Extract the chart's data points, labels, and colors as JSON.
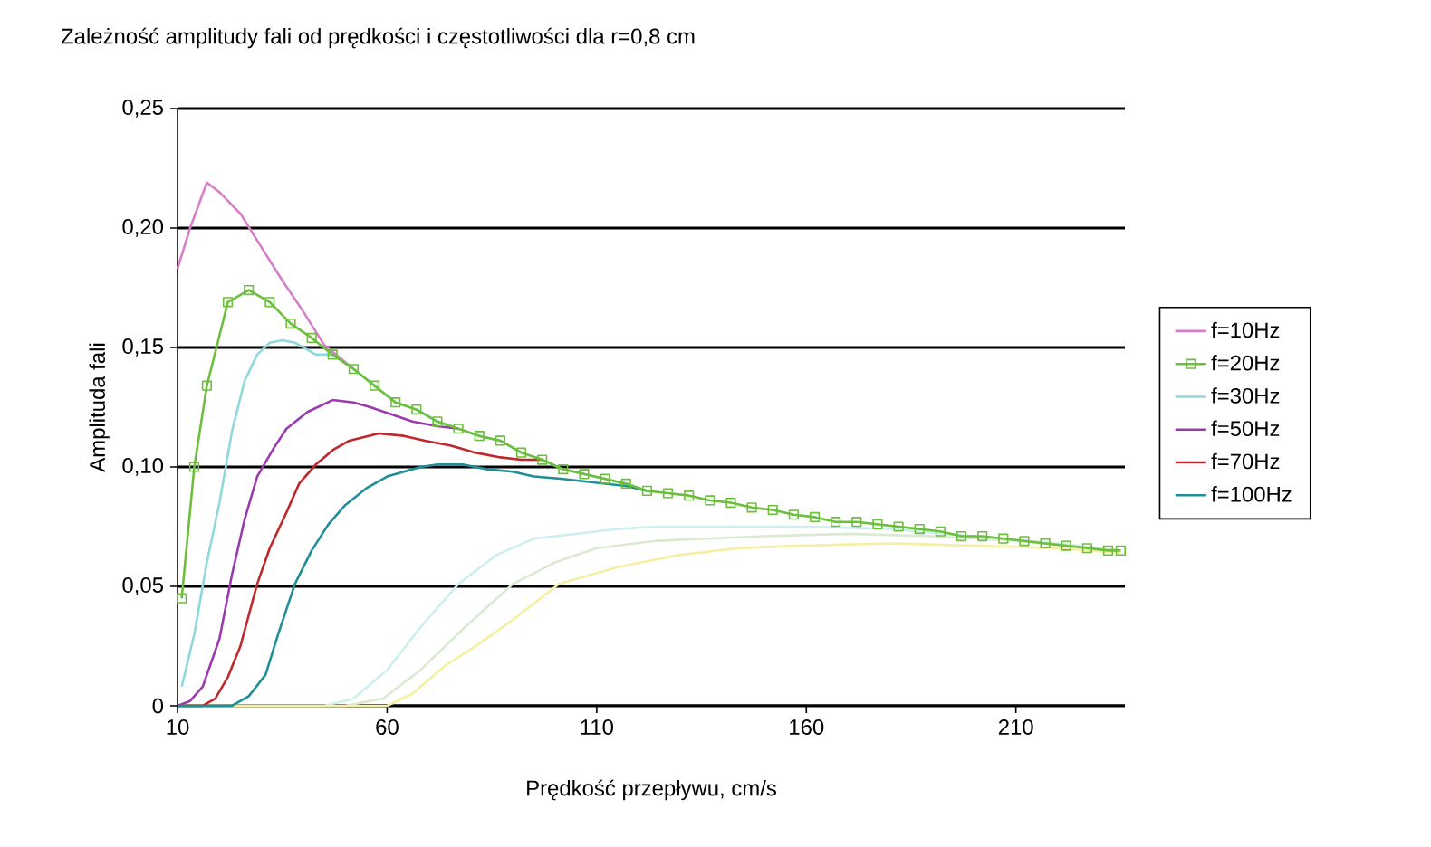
{
  "chart_data": {
    "type": "line",
    "title": "Zależność amplitudy fali od prędkości i częstotliwości dla r=0,8 cm",
    "xlabel": "Prędkość przepływu, cm/s",
    "ylabel": "Amplituda fali",
    "xlim": [
      10,
      236
    ],
    "xticks": [
      10,
      60,
      110,
      160,
      210
    ],
    "ylim": [
      0,
      0.25
    ],
    "yticks": [
      0,
      {
        "value": 0.05,
        "label": "0,05"
      },
      {
        "value": 0.1,
        "label": "0,10"
      },
      {
        "value": 0.15,
        "label": "0,15"
      },
      {
        "value": 0.2,
        "label": "0,20"
      },
      {
        "value": 0.25,
        "label": "0,25"
      }
    ],
    "grid": "y",
    "legend": "right",
    "line_style": "solid",
    "series": [
      {
        "color": "#cdeff0",
        "x": [
          10,
          45,
          52,
          60,
          68,
          77,
          86,
          95,
          105,
          115,
          124,
          140,
          160,
          180,
          200,
          220,
          235
        ],
        "values": [
          0,
          0,
          0.003,
          0.015,
          0.033,
          0.051,
          0.063,
          0.07,
          0.072,
          0.074,
          0.075,
          0.075,
          0.075,
          0.074,
          0.071,
          0.068,
          0.065
        ]
      },
      {
        "color": "#d9ead0",
        "x": [
          10,
          50,
          59,
          68,
          78,
          90,
          100,
          110,
          124,
          136,
          150,
          170,
          190,
          210,
          235
        ],
        "values": [
          0,
          0,
          0.003,
          0.015,
          0.032,
          0.051,
          0.06,
          0.066,
          0.069,
          0.07,
          0.071,
          0.072,
          0.071,
          0.069,
          0.065
        ]
      },
      {
        "color": "#f6eea0",
        "x": [
          10,
          60,
          66,
          74,
          82,
          90,
          101,
          115,
          129,
          144,
          158,
          180,
          201,
          220,
          235
        ],
        "values": [
          0,
          0,
          0.005,
          0.017,
          0.026,
          0.036,
          0.051,
          0.058,
          0.063,
          0.066,
          0.067,
          0.068,
          0.067,
          0.066,
          0.064
        ]
      },
      {
        "name": "f=10Hz",
        "color": "#d67fc8",
        "x": [
          10,
          13,
          17,
          20,
          25,
          30,
          35,
          40,
          45,
          52
        ],
        "values": [
          0.183,
          0.2,
          0.219,
          0.215,
          0.206,
          0.192,
          0.178,
          0.165,
          0.151,
          0.141
        ]
      },
      {
        "name": "f=20Hz",
        "color": "#6cbf3a",
        "marker": "square",
        "x": [
          11,
          14,
          17,
          22,
          27,
          32,
          37,
          42,
          47,
          52,
          57,
          62,
          67,
          72,
          77,
          82,
          87,
          92,
          97,
          102,
          107,
          112,
          117,
          122,
          127,
          132,
          137,
          142,
          147,
          152,
          157,
          162,
          167,
          172,
          177,
          182,
          187,
          192,
          197,
          202,
          207,
          212,
          217,
          222,
          227,
          232,
          235
        ],
        "values": [
          0.045,
          0.1,
          0.134,
          0.169,
          0.174,
          0.169,
          0.16,
          0.154,
          0.147,
          0.141,
          0.134,
          0.127,
          0.124,
          0.119,
          0.116,
          0.113,
          0.111,
          0.106,
          0.103,
          0.099,
          0.097,
          0.095,
          0.093,
          0.09,
          0.089,
          0.088,
          0.086,
          0.085,
          0.083,
          0.082,
          0.08,
          0.079,
          0.077,
          0.077,
          0.076,
          0.075,
          0.074,
          0.073,
          0.071,
          0.071,
          0.07,
          0.069,
          0.068,
          0.067,
          0.066,
          0.065,
          0.065
        ]
      },
      {
        "name": "f=30Hz",
        "color": "#8fd8dc",
        "x": [
          11,
          14,
          17,
          20,
          23,
          26,
          29,
          32,
          35,
          38,
          43,
          47,
          52,
          57,
          62,
          67,
          72,
          77,
          82,
          87,
          92,
          97,
          102,
          107,
          112,
          117,
          122
        ],
        "values": [
          0.008,
          0.03,
          0.06,
          0.085,
          0.115,
          0.136,
          0.147,
          0.152,
          0.153,
          0.152,
          0.147,
          0.147,
          0.141,
          0.134,
          0.127,
          0.124,
          0.119,
          0.116,
          0.113,
          0.111,
          0.106,
          0.103,
          0.099,
          0.097,
          0.095,
          0.093,
          0.09
        ]
      },
      {
        "name": "f=50Hz",
        "color": "#9a3aae",
        "x": [
          10,
          13,
          16,
          20,
          23,
          26,
          29,
          33,
          36,
          41,
          47,
          52,
          56,
          61,
          66,
          72,
          77
        ],
        "values": [
          0,
          0.002,
          0.008,
          0.028,
          0.055,
          0.078,
          0.096,
          0.108,
          0.116,
          0.123,
          0.128,
          0.127,
          0.125,
          0.122,
          0.119,
          0.117,
          0.116
        ]
      },
      {
        "name": "f=70Hz",
        "color": "#c0282b",
        "x": [
          10,
          16,
          19,
          22,
          25,
          29,
          32,
          36,
          39,
          43,
          47,
          51,
          58,
          64,
          69,
          75,
          81,
          87,
          92,
          97
        ],
        "values": [
          0,
          0,
          0.003,
          0.012,
          0.025,
          0.051,
          0.066,
          0.081,
          0.093,
          0.101,
          0.107,
          0.111,
          0.114,
          0.113,
          0.111,
          0.109,
          0.106,
          0.104,
          0.103,
          0.103
        ]
      },
      {
        "name": "f=100Hz",
        "color": "#1e8f95",
        "x": [
          10,
          23,
          27,
          31,
          34,
          38,
          42,
          46,
          50,
          55,
          60,
          64,
          68,
          72,
          78,
          84,
          90,
          95,
          102,
          107,
          112,
          117,
          122
        ],
        "values": [
          0,
          0,
          0.004,
          0.013,
          0.03,
          0.051,
          0.065,
          0.076,
          0.084,
          0.091,
          0.096,
          0.098,
          0.1,
          0.101,
          0.101,
          0.099,
          0.098,
          0.096,
          0.095,
          0.094,
          0.093,
          0.092,
          0.09
        ]
      }
    ]
  }
}
